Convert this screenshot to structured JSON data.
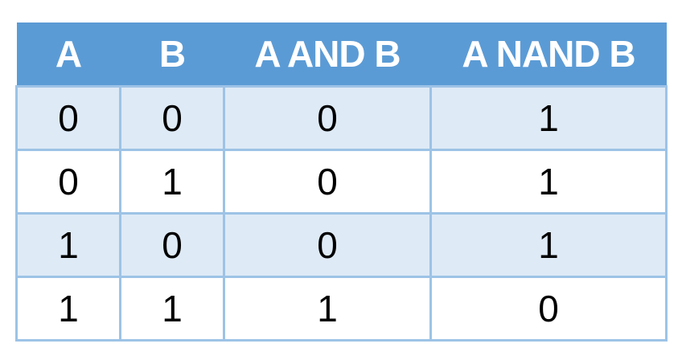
{
  "table": {
    "headers": [
      "A",
      "B",
      "A AND B",
      "A NAND B"
    ],
    "rows": [
      [
        "0",
        "0",
        "0",
        "1"
      ],
      [
        "0",
        "1",
        "0",
        "1"
      ],
      [
        "1",
        "0",
        "0",
        "1"
      ],
      [
        "1",
        "1",
        "1",
        "0"
      ]
    ]
  },
  "colors": {
    "header_bg": "#5b9bd5",
    "header_text": "#ffffff",
    "band_row_bg": "#deeaf6",
    "plain_row_bg": "#ffffff",
    "border": "#9dc3e6"
  }
}
